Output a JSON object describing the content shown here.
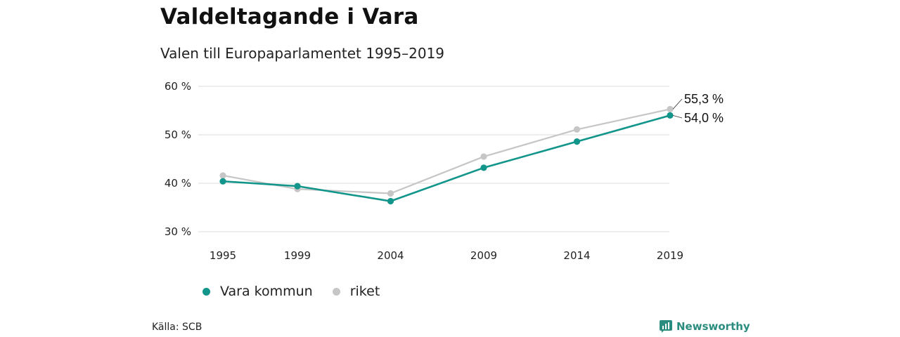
{
  "header": {
    "title": "Valdeltagande i Vara",
    "subtitle": "Valen till Europaparlamentet 1995–2019"
  },
  "chart_data": {
    "type": "line",
    "title": "Valdeltagande i Vara",
    "subtitle": "Valen till Europaparlamentet 1995–2019",
    "xlabel": "",
    "ylabel": "",
    "categories": [
      "1995",
      "1999",
      "2004",
      "2009",
      "2014",
      "2019"
    ],
    "ylim": [
      30,
      60
    ],
    "yticks": [
      30,
      40,
      50,
      60
    ],
    "ytick_labels": [
      "30 %",
      "40 %",
      "50 %",
      "60 %"
    ],
    "grid": true,
    "legend_position": "bottom-left",
    "series": [
      {
        "name": "riket",
        "color": "#c6c6c6",
        "values": [
          41.6,
          38.8,
          37.9,
          45.5,
          51.1,
          55.3
        ],
        "end_label": "55,3 %"
      },
      {
        "name": "Vara kommun",
        "color": "#12958a",
        "values": [
          40.4,
          39.4,
          36.3,
          43.2,
          48.6,
          54.0
        ],
        "end_label": "54,0 %"
      }
    ]
  },
  "legend": {
    "items": [
      {
        "label": "Vara kommun",
        "color": "#12958a"
      },
      {
        "label": "riket",
        "color": "#c6c6c6"
      }
    ]
  },
  "footer": {
    "source": "Källa: SCB",
    "brand": "Newsworthy",
    "brand_color": "#2a8c7f",
    "brand_icon": "bar-chart-icon"
  }
}
